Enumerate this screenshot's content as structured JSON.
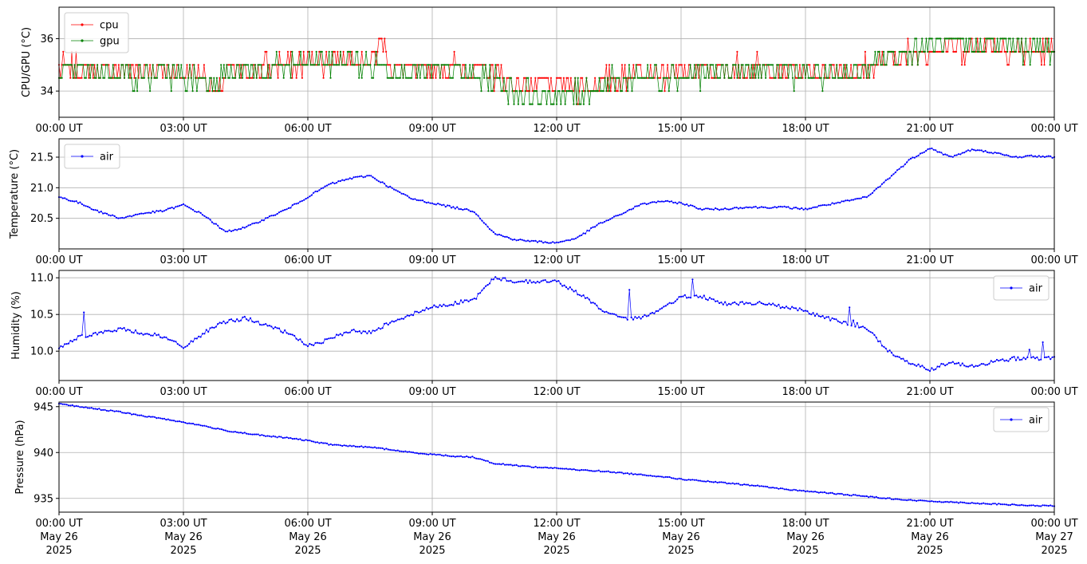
{
  "colors": {
    "cpu": "#ff0000",
    "gpu": "#008000",
    "air": "#0000ff",
    "grid": "#b0b0b0",
    "axis": "#000000"
  },
  "x_ticks": [
    "00:00 UT",
    "03:00 UT",
    "06:00 UT",
    "09:00 UT",
    "12:00 UT",
    "15:00 UT",
    "18:00 UT",
    "21:00 UT",
    "00:00 UT"
  ],
  "x_tick_dates": [
    [
      "May 26",
      "2025"
    ],
    [
      "May 26",
      "2025"
    ],
    [
      "May 26",
      "2025"
    ],
    [
      "May 26",
      "2025"
    ],
    [
      "May 26",
      "2025"
    ],
    [
      "May 26",
      "2025"
    ],
    [
      "May 26",
      "2025"
    ],
    [
      "May 26",
      "2025"
    ],
    [
      "May 27",
      "2025"
    ]
  ],
  "chart_data": [
    {
      "type": "line",
      "ylabel": "CPU/GPU (°C)",
      "xlim": [
        "2025-05-26 00:00",
        "2025-05-27 00:00"
      ],
      "ylim": [
        33.0,
        37.2
      ],
      "yticks": [
        34,
        36
      ],
      "grid": true,
      "legend": "top-left",
      "x_hours": [
        0,
        0.5,
        1,
        1.5,
        2,
        2.5,
        3,
        3.5,
        3.8,
        4,
        4.5,
        5,
        5.5,
        6,
        6.5,
        7,
        7.5,
        7.8,
        8,
        8.5,
        9,
        9.5,
        10,
        10.5,
        11,
        11.5,
        12,
        12.5,
        13,
        13.5,
        14,
        14.5,
        15,
        15.5,
        16,
        16.5,
        17,
        17.5,
        18,
        18.5,
        19,
        19.5,
        20,
        20.5,
        21,
        21.5,
        22,
        22.5,
        23,
        23.5,
        24
      ],
      "series": [
        {
          "name": "cpu",
          "values": [
            34.9,
            34.8,
            34.8,
            34.9,
            34.8,
            34.8,
            34.7,
            34.6,
            33.7,
            34.8,
            34.8,
            34.9,
            35.0,
            35.1,
            35.2,
            35.3,
            35.1,
            35.9,
            34.9,
            34.8,
            34.8,
            34.9,
            34.8,
            34.6,
            34.3,
            34.2,
            34.2,
            34.1,
            34.3,
            34.5,
            34.8,
            34.7,
            34.6,
            34.8,
            34.8,
            34.9,
            34.8,
            34.8,
            34.7,
            34.8,
            34.8,
            34.9,
            35.2,
            35.4,
            35.6,
            35.7,
            35.6,
            35.8,
            35.6,
            35.5,
            35.5
          ]
        },
        {
          "name": "gpu",
          "values": [
            34.8,
            34.7,
            34.6,
            34.7,
            34.6,
            34.6,
            34.5,
            34.5,
            34.5,
            34.6,
            34.7,
            34.8,
            34.9,
            35.0,
            35.1,
            35.2,
            35.0,
            35.0,
            34.8,
            34.7,
            34.7,
            34.8,
            34.6,
            34.4,
            34.0,
            33.8,
            33.8,
            33.9,
            34.2,
            34.4,
            34.6,
            34.6,
            34.5,
            34.6,
            34.7,
            34.8,
            34.7,
            34.7,
            34.6,
            34.7,
            34.7,
            34.8,
            35.3,
            35.5,
            35.7,
            35.8,
            35.7,
            35.9,
            35.7,
            35.6,
            35.6
          ]
        }
      ]
    },
    {
      "type": "line",
      "ylabel": "Temperature (°C)",
      "xlim": [
        "2025-05-26 00:00",
        "2025-05-27 00:00"
      ],
      "ylim": [
        20.0,
        21.8
      ],
      "yticks": [
        20.5,
        21.0,
        21.5
      ],
      "grid": true,
      "legend": "top-left",
      "x_hours": [
        0,
        0.5,
        1,
        1.5,
        2,
        2.5,
        3,
        3.5,
        4,
        4.5,
        5,
        5.5,
        6,
        6.5,
        7,
        7.5,
        8,
        8.5,
        9,
        9.5,
        10,
        10.5,
        11,
        11.5,
        12,
        12.5,
        13,
        13.5,
        14,
        14.5,
        15,
        15.5,
        16,
        16.5,
        17,
        17.5,
        18,
        18.5,
        19,
        19.5,
        20,
        20.5,
        21,
        21.5,
        22,
        22.5,
        23,
        23.5,
        24
      ],
      "series": [
        {
          "name": "air",
          "values": [
            20.85,
            20.75,
            20.6,
            20.5,
            20.58,
            20.62,
            20.72,
            20.55,
            20.28,
            20.35,
            20.5,
            20.65,
            20.85,
            21.05,
            21.15,
            21.2,
            21.0,
            20.82,
            20.75,
            20.68,
            20.62,
            20.25,
            20.15,
            20.12,
            20.1,
            20.18,
            20.4,
            20.55,
            20.72,
            20.78,
            20.75,
            20.65,
            20.65,
            20.68,
            20.68,
            20.68,
            20.65,
            20.72,
            20.78,
            20.85,
            21.15,
            21.45,
            21.65,
            21.5,
            21.62,
            21.58,
            21.5,
            21.52,
            21.5
          ]
        }
      ]
    },
    {
      "type": "line",
      "ylabel": "Humidity (%)",
      "xlim": [
        "2025-05-26 00:00",
        "2025-05-27 00:00"
      ],
      "ylim": [
        9.6,
        11.1
      ],
      "yticks": [
        10.0,
        10.5,
        11.0
      ],
      "grid": true,
      "legend": "top-right",
      "x_hours": [
        0,
        0.5,
        1,
        1.5,
        2,
        2.5,
        3,
        3.5,
        4,
        4.5,
        5,
        5.5,
        6,
        6.5,
        7,
        7.5,
        8,
        8.5,
        9,
        9.5,
        10,
        10.5,
        11,
        11.5,
        12,
        12.5,
        13,
        13.5,
        14,
        14.5,
        15,
        15.5,
        16,
        16.5,
        17,
        17.5,
        18,
        18.5,
        19,
        19.5,
        20,
        20.5,
        21,
        21.5,
        22,
        22.5,
        23,
        23.5,
        24
      ],
      "series": [
        {
          "name": "air",
          "values": [
            10.05,
            10.2,
            10.25,
            10.3,
            10.25,
            10.2,
            10.05,
            10.25,
            10.4,
            10.45,
            10.35,
            10.25,
            10.08,
            10.15,
            10.28,
            10.25,
            10.4,
            10.5,
            10.6,
            10.65,
            10.7,
            11.0,
            10.95,
            10.95,
            10.95,
            10.8,
            10.6,
            10.45,
            10.45,
            10.55,
            10.75,
            10.75,
            10.65,
            10.65,
            10.65,
            10.6,
            10.55,
            10.45,
            10.38,
            10.3,
            10.0,
            9.85,
            9.75,
            9.85,
            9.8,
            9.85,
            9.9,
            9.9,
            9.9
          ]
        }
      ]
    },
    {
      "type": "line",
      "ylabel": "Pressure (hPa)",
      "xlim": [
        "2025-05-26 00:00",
        "2025-05-27 00:00"
      ],
      "ylim": [
        933.5,
        945.5
      ],
      "yticks": [
        935,
        940,
        945
      ],
      "grid": true,
      "legend": "top-right",
      "x_hours": [
        0,
        0.5,
        1,
        1.5,
        2,
        2.5,
        3,
        3.5,
        4,
        4.5,
        5,
        5.5,
        6,
        6.5,
        7,
        7.5,
        8,
        8.5,
        9,
        9.5,
        10,
        10.5,
        11,
        11.5,
        12,
        12.5,
        13,
        13.5,
        14,
        14.5,
        15,
        15.5,
        16,
        16.5,
        17,
        17.5,
        18,
        18.5,
        19,
        19.5,
        20,
        20.5,
        21,
        21.5,
        22,
        22.5,
        23,
        23.5,
        24
      ],
      "series": [
        {
          "name": "air",
          "values": [
            945.3,
            945.0,
            944.7,
            944.4,
            944.0,
            943.7,
            943.3,
            942.9,
            942.4,
            942.1,
            941.8,
            941.6,
            941.3,
            940.9,
            940.7,
            940.6,
            940.3,
            940.0,
            939.8,
            939.6,
            939.5,
            938.8,
            938.6,
            938.4,
            938.3,
            938.1,
            938.0,
            937.8,
            937.6,
            937.4,
            937.1,
            936.9,
            936.7,
            936.5,
            936.3,
            936.0,
            935.8,
            935.6,
            935.4,
            935.2,
            935.0,
            934.8,
            934.7,
            934.6,
            934.5,
            934.4,
            934.3,
            934.2,
            934.2
          ]
        }
      ]
    }
  ]
}
